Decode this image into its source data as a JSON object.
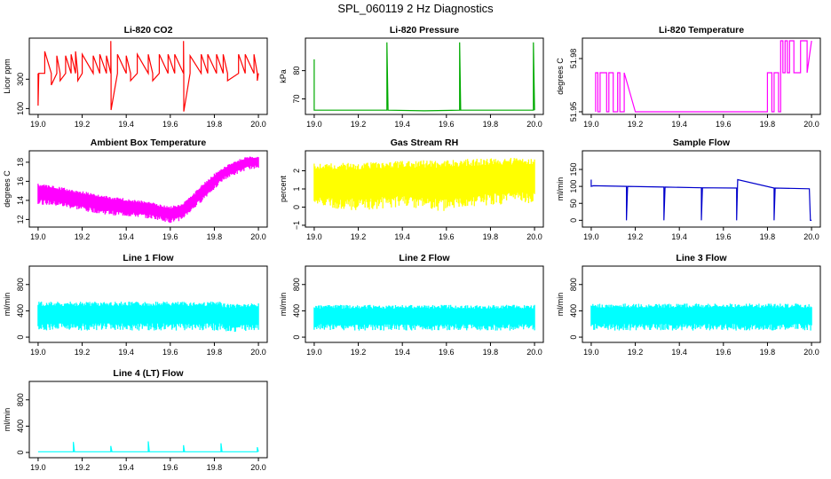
{
  "figure": {
    "title": "SPL_060119  2 Hz Diagnostics"
  },
  "chart_data": [
    {
      "type": "line",
      "title": "Li-820 CO2",
      "xlabel": "",
      "ylabel": "Licor ppm",
      "xlim": [
        18.96,
        20.04
      ],
      "ylim": [
        60,
        580
      ],
      "xticks": [
        19.0,
        19.2,
        19.4,
        19.6,
        19.8,
        20.0
      ],
      "xticklabels": [
        "19.0",
        "19.2",
        "19.4",
        "19.6",
        "19.8",
        "20.0"
      ],
      "yticks": [
        100,
        300
      ],
      "yticklabels": [
        "100",
        "300"
      ],
      "color": "#ff0000",
      "series": [
        {
          "x": [
            19.0,
            19.0,
            19.003,
            19.003,
            19.03,
            19.03,
            19.06,
            19.06,
            19.085,
            19.085,
            19.1,
            19.1,
            19.125,
            19.125,
            19.15,
            19.15,
            19.17,
            19.17,
            19.18,
            19.18,
            19.2,
            19.2,
            19.25,
            19.25,
            19.28,
            19.28,
            19.31,
            19.31,
            19.33,
            19.33,
            19.331,
            19.331,
            19.36,
            19.36,
            19.4,
            19.4,
            19.42,
            19.42,
            19.45,
            19.45,
            19.5,
            19.5,
            19.52,
            19.52,
            19.55,
            19.55,
            19.59,
            19.59,
            19.62,
            19.62,
            19.66,
            19.66,
            19.661,
            19.661,
            19.69,
            19.69,
            19.74,
            19.74,
            19.77,
            19.77,
            19.81,
            19.81,
            19.84,
            19.84,
            19.86,
            19.86,
            19.91,
            19.91,
            19.94,
            19.94,
            19.98,
            19.98,
            19.995,
            19.995,
            20.0
          ],
          "y": [
            340,
            120,
            340,
            340,
            340,
            490,
            340,
            260,
            340,
            460,
            340,
            290,
            340,
            460,
            340,
            470,
            340,
            490,
            340,
            290,
            340,
            470,
            340,
            460,
            340,
            470,
            340,
            460,
            340,
            560,
            340,
            90,
            340,
            470,
            340,
            460,
            340,
            290,
            340,
            470,
            340,
            470,
            340,
            290,
            340,
            470,
            340,
            470,
            340,
            470,
            340,
            560,
            340,
            80,
            340,
            460,
            340,
            470,
            340,
            470,
            340,
            470,
            340,
            470,
            340,
            290,
            340,
            470,
            340,
            470,
            340,
            470,
            340,
            290,
            340
          ]
        }
      ]
    },
    {
      "type": "line",
      "title": "Li-820 Pressure",
      "xlabel": "",
      "ylabel": "kPa",
      "xlim": [
        18.96,
        20.04
      ],
      "ylim": [
        64.5,
        91.5
      ],
      "xticks": [
        19.0,
        19.2,
        19.4,
        19.6,
        19.8,
        20.0
      ],
      "xticklabels": [
        "19.0",
        "19.2",
        "19.4",
        "19.6",
        "19.8",
        "20.0"
      ],
      "yticks": [
        70,
        80
      ],
      "yticklabels": [
        "70",
        "80"
      ],
      "color": "#00aa00",
      "series": [
        {
          "x": [
            19.0,
            19.0,
            19.0,
            19.01,
            19.2,
            19.33,
            19.33,
            19.335,
            19.5,
            19.66,
            19.66,
            19.665,
            19.84,
            19.995,
            19.995,
            20.0
          ],
          "y": [
            77,
            84,
            66,
            66,
            66,
            66,
            90,
            66,
            65.8,
            66,
            90,
            66,
            66,
            66,
            90,
            66
          ]
        }
      ]
    },
    {
      "type": "line",
      "title": "Li-820 Temperature",
      "xlabel": "",
      "ylabel": "degrees C",
      "xlim": [
        18.96,
        20.04
      ],
      "ylim": [
        51.9485,
        51.9915
      ],
      "xticks": [
        19.0,
        19.2,
        19.4,
        19.6,
        19.8,
        20.0
      ],
      "xticklabels": [
        "19.0",
        "19.2",
        "19.4",
        "19.6",
        "19.8",
        "20.0"
      ],
      "yticks": [
        51.95,
        51.98
      ],
      "yticklabels": [
        "51.95",
        "51.98"
      ],
      "color": "#ff00ff",
      "series": [
        {
          "x": [
            19.02,
            19.02,
            19.03,
            19.03,
            19.04,
            19.04,
            19.07,
            19.07,
            19.08,
            19.08,
            19.1,
            19.1,
            19.12,
            19.12,
            19.13,
            19.13,
            19.15,
            19.15,
            19.2,
            19.5,
            19.8,
            19.8,
            19.82,
            19.82,
            19.83,
            19.83,
            19.85,
            19.85,
            19.86,
            19.86,
            19.87,
            19.87,
            19.88,
            19.88,
            19.89,
            19.89,
            19.9,
            19.9,
            19.92,
            19.92,
            19.95,
            19.95,
            19.98,
            19.98,
            20.0
          ],
          "y": [
            51.95,
            51.972,
            51.972,
            51.95,
            51.95,
            51.972,
            51.972,
            51.95,
            51.95,
            51.972,
            51.972,
            51.95,
            51.95,
            51.972,
            51.972,
            51.95,
            51.95,
            51.972,
            51.95,
            51.95,
            51.95,
            51.972,
            51.972,
            51.95,
            51.95,
            51.972,
            51.972,
            51.95,
            51.95,
            51.99,
            51.99,
            51.972,
            51.972,
            51.99,
            51.99,
            51.972,
            51.972,
            51.99,
            51.99,
            51.972,
            51.972,
            51.99,
            51.99,
            51.972,
            51.99
          ]
        }
      ]
    },
    {
      "type": "area",
      "title": "Ambient Box Temperature",
      "xlabel": "",
      "ylabel": "degrees C",
      "xlim": [
        18.96,
        20.04
      ],
      "ylim": [
        11.2,
        19.2
      ],
      "xticks": [
        19.0,
        19.2,
        19.4,
        19.6,
        19.8,
        20.0
      ],
      "xticklabels": [
        "19.0",
        "19.2",
        "19.4",
        "19.6",
        "19.8",
        "20.0"
      ],
      "yticks": [
        12,
        14,
        16,
        18
      ],
      "yticklabels": [
        "12",
        "14",
        "16",
        "18"
      ],
      "color": "#ff00ff",
      "series": [
        {
          "x": [
            19.0,
            19.1,
            19.2,
            19.3,
            19.4,
            19.5,
            19.55,
            19.6,
            19.65,
            19.7,
            19.75,
            19.8,
            19.85,
            19.9,
            19.95,
            20.0
          ],
          "ymax": [
            15.8,
            15.4,
            15.0,
            14.5,
            14.2,
            13.9,
            13.6,
            13.4,
            13.6,
            14.6,
            15.8,
            16.8,
            17.6,
            18.2,
            18.6,
            18.6
          ],
          "ymin": [
            13.6,
            13.3,
            12.9,
            12.5,
            12.3,
            12.1,
            11.9,
            11.6,
            11.9,
            12.9,
            14.0,
            15.2,
            16.2,
            16.7,
            17.2,
            17.4
          ]
        }
      ]
    },
    {
      "type": "area",
      "title": "Gas Stream RH",
      "xlabel": "",
      "ylabel": "percent",
      "xlim": [
        18.96,
        20.04
      ],
      "ylim": [
        -1.1,
        3.1
      ],
      "xticks": [
        19.0,
        19.2,
        19.4,
        19.6,
        19.8,
        20.0
      ],
      "xticklabels": [
        "19.0",
        "19.2",
        "19.4",
        "19.6",
        "19.8",
        "20.0"
      ],
      "yticks": [
        -1,
        0,
        1,
        2
      ],
      "yticklabels": [
        "−1",
        "0",
        "1",
        "2"
      ],
      "color": "#ffff00",
      "series": [
        {
          "x": [
            19.0,
            19.2,
            19.4,
            19.6,
            19.8,
            20.0
          ],
          "ymax": [
            2.4,
            2.45,
            2.55,
            2.6,
            2.7,
            2.75
          ],
          "ymin": [
            0.0,
            -0.2,
            0.0,
            -0.3,
            0.1,
            0.2
          ]
        }
      ]
    },
    {
      "type": "line",
      "title": "Sample Flow",
      "xlabel": "",
      "ylabel": "ml/min",
      "xlim": [
        18.96,
        20.04
      ],
      "ylim": [
        -20,
        205
      ],
      "xticks": [
        19.0,
        19.2,
        19.4,
        19.6,
        19.8,
        20.0
      ],
      "xticklabels": [
        "19.0",
        "19.2",
        "19.4",
        "19.6",
        "19.8",
        "20.0"
      ],
      "yticks": [
        0,
        50,
        100,
        150
      ],
      "yticklabels": [
        "0",
        "50",
        "100",
        "150"
      ],
      "color": "#0000cc",
      "series": [
        {
          "x": [
            19.0,
            19.0,
            19.01,
            19.16,
            19.16,
            19.165,
            19.33,
            19.33,
            19.335,
            19.5,
            19.5,
            19.505,
            19.66,
            19.66,
            19.665,
            19.83,
            19.83,
            19.835,
            19.99,
            19.995,
            20.0
          ],
          "y": [
            120,
            100,
            102,
            100,
            0,
            100,
            98,
            0,
            98,
            96,
            0,
            96,
            95,
            0,
            120,
            95,
            0,
            95,
            93,
            0,
            0
          ]
        }
      ]
    },
    {
      "type": "area",
      "title": "Line 1 Flow",
      "xlabel": "",
      "ylabel": "ml/min",
      "xlim": [
        18.96,
        20.04
      ],
      "ylim": [
        -80,
        1080
      ],
      "xticks": [
        19.0,
        19.2,
        19.4,
        19.6,
        19.8,
        20.0
      ],
      "xticklabels": [
        "19.0",
        "19.2",
        "19.4",
        "19.6",
        "19.8",
        "20.0"
      ],
      "yticks": [
        0,
        400,
        800
      ],
      "yticklabels": [
        "0",
        "400",
        "800"
      ],
      "color": "#00ffff",
      "series": [
        {
          "x": [
            19.0,
            19.16,
            19.33,
            19.5,
            19.66,
            19.83,
            19.84,
            20.0
          ],
          "ymax": [
            540,
            540,
            540,
            540,
            540,
            540,
            510,
            520
          ],
          "ymin": [
            100,
            100,
            100,
            100,
            100,
            100,
            80,
            80
          ]
        }
      ]
    },
    {
      "type": "area",
      "title": "Line 2 Flow",
      "xlabel": "",
      "ylabel": "ml/min",
      "xlim": [
        18.96,
        20.04
      ],
      "ylim": [
        -80,
        1080
      ],
      "xticks": [
        19.0,
        19.2,
        19.4,
        19.6,
        19.8,
        20.0
      ],
      "xticklabels": [
        "19.0",
        "19.2",
        "19.4",
        "19.6",
        "19.8",
        "20.0"
      ],
      "yticks": [
        0,
        400,
        800
      ],
      "yticklabels": [
        "0",
        "400",
        "800"
      ],
      "color": "#00ffff",
      "series": [
        {
          "x": [
            19.0,
            20.0
          ],
          "ymax": [
            490,
            490
          ],
          "ymin": [
            100,
            100
          ]
        }
      ]
    },
    {
      "type": "area",
      "title": "Line 3 Flow",
      "xlabel": "",
      "ylabel": "ml/min",
      "xlim": [
        18.96,
        20.04
      ],
      "ylim": [
        -80,
        1080
      ],
      "xticks": [
        19.0,
        19.2,
        19.4,
        19.6,
        19.8,
        20.0
      ],
      "xticklabels": [
        "19.0",
        "19.2",
        "19.4",
        "19.6",
        "19.8",
        "20.0"
      ],
      "yticks": [
        0,
        400,
        800
      ],
      "yticklabels": [
        "0",
        "400",
        "800"
      ],
      "color": "#00ffff",
      "series": [
        {
          "x": [
            19.0,
            20.0
          ],
          "ymax": [
            510,
            510
          ],
          "ymin": [
            100,
            100
          ]
        }
      ]
    },
    {
      "type": "line",
      "title": "Line 4 (LT) Flow",
      "xlabel": "",
      "ylabel": "ml/min",
      "xlim": [
        18.96,
        20.04
      ],
      "ylim": [
        -80,
        1080
      ],
      "xticks": [
        19.0,
        19.2,
        19.4,
        19.6,
        19.8,
        20.0
      ],
      "xticklabels": [
        "19.0",
        "19.2",
        "19.4",
        "19.6",
        "19.8",
        "20.0"
      ],
      "yticks": [
        0,
        400,
        800
      ],
      "yticklabels": [
        "0",
        "400",
        "800"
      ],
      "color": "#00ffff",
      "series": [
        {
          "x": [
            19.0,
            19.16,
            19.16,
            19.165,
            19.33,
            19.33,
            19.335,
            19.5,
            19.5,
            19.505,
            19.66,
            19.66,
            19.665,
            19.83,
            19.83,
            19.835,
            19.995,
            19.995,
            20.0
          ],
          "y": [
            10,
            10,
            160,
            10,
            10,
            100,
            10,
            10,
            170,
            10,
            10,
            110,
            10,
            10,
            140,
            10,
            10,
            80,
            10
          ]
        }
      ]
    }
  ]
}
